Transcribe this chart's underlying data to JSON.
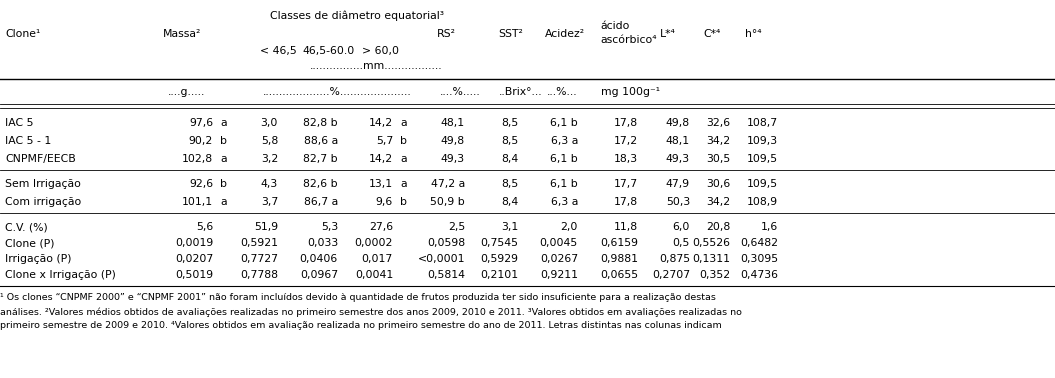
{
  "title": "Classes de diâmetro equatorial³",
  "rows": [
    [
      "IAC 5",
      "97,6",
      "a",
      "3,0",
      "82,8 b",
      "14,2",
      "a",
      "48,1",
      "8,5",
      "6,1 b",
      "17,8",
      "49,8",
      "32,6",
      "108,7"
    ],
    [
      "IAC 5 - 1",
      "90,2",
      "b",
      "5,8",
      "88,6 a",
      "5,7",
      "b",
      "49,8",
      "8,5",
      "6,3 a",
      "17,2",
      "48,1",
      "34,2",
      "109,3"
    ],
    [
      "CNPMF/EECB",
      "102,8",
      "a",
      "3,2",
      "82,7 b",
      "14,2",
      "a",
      "49,3",
      "8,4",
      "6,1 b",
      "18,3",
      "49,3",
      "30,5",
      "109,5"
    ],
    [
      "Sem Irrigação",
      "92,6",
      "b",
      "4,3",
      "82,6 b",
      "13,1",
      "a",
      "47,2 a",
      "8,5",
      "6,1 b",
      "17,7",
      "47,9",
      "30,6",
      "109,5"
    ],
    [
      "Com irrigação",
      "101,1",
      "a",
      "3,7",
      "86,7 a",
      "9,6",
      "b",
      "50,9 b",
      "8,4",
      "6,3 a",
      "17,8",
      "50,3",
      "34,2",
      "108,9"
    ]
  ],
  "stat_rows": [
    [
      "C.V. (%)",
      "5,6",
      "51,9",
      "5,3",
      "27,6",
      "2,5",
      "3,1",
      "2,0",
      "11,8",
      "6,0",
      "20,8",
      "1,6"
    ],
    [
      "Clone (P)",
      "0,0019",
      "0,5921",
      "0,033",
      "0,0002",
      "0,0598",
      "0,7545",
      "0,0045",
      "0,6159",
      "0,5",
      "0,5526",
      "0,6482"
    ],
    [
      "Irrigação (P)",
      "0,0207",
      "0,7727",
      "0,0406",
      "0,017",
      "<0,0001",
      "0,5929",
      "0,0267",
      "0,9881",
      "0,875",
      "0,1311",
      "0,3095"
    ],
    [
      "Clone x Irrigação (P)",
      "0,5019",
      "0,7788",
      "0,0967",
      "0,0041",
      "0,5814",
      "0,2101",
      "0,9211",
      "0,0655",
      "0,2707",
      "0,352",
      "0,4736"
    ]
  ],
  "footnotes": [
    "¹ Os clones “CNPMF 2000” e “CNPMF 2001” não foram incluídos devido à quantidade de frutos produzida ter sido insuficiente para a realização destas",
    "análises. ²Valores médios obtidos de avaliações realizadas no primeiro semestre dos anos 2009, 2010 e 2011. ³Valores obtidos em avaliações realizadas no",
    "primeiro semestre de 2009 e 2010. ⁴Valores obtidos em avaliação realizada no primeiro semestre do ano de 2011. Letras distintas nas colunas indicam"
  ],
  "bg_color": "#ffffff",
  "text_color": "#000000",
  "font_size": 7.8,
  "footnote_font_size": 6.8
}
